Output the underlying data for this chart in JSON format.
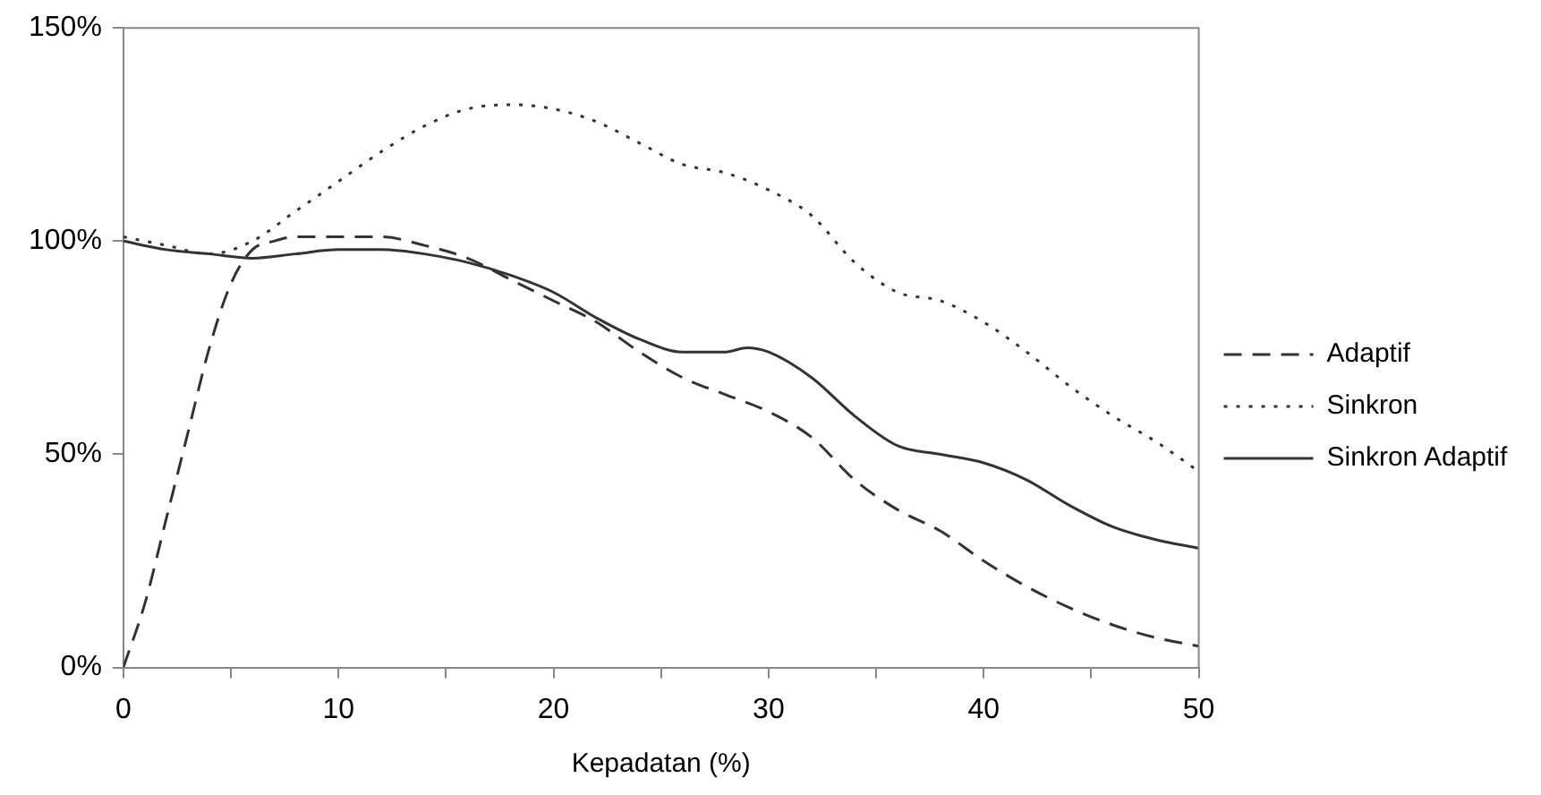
{
  "chart_data": {
    "type": "line",
    "xlabel": "Kepadatan (%)",
    "xlim": [
      0,
      50
    ],
    "xticks": [
      0,
      {
        "value": 5,
        "label": null
      },
      10,
      {
        "value": 15,
        "label": null
      },
      20,
      {
        "value": 25,
        "label": null
      },
      30,
      {
        "value": 35,
        "label": null
      },
      40,
      {
        "value": 45,
        "label": null
      },
      50
    ],
    "ylim": [
      0,
      150
    ],
    "yticks": [
      {
        "value": 0,
        "label": "0%"
      },
      {
        "value": 50,
        "label": "50%"
      },
      {
        "value": 100,
        "label": "100%"
      },
      {
        "value": 150,
        "label": "150%"
      }
    ],
    "grid": false,
    "legend": "right",
    "marker": "none",
    "series": [
      {
        "name": "Adaptif",
        "color": "#333333",
        "line_style": "dashed",
        "x": [
          0,
          1,
          2,
          3,
          4,
          5,
          6,
          7,
          8,
          10,
          12,
          14,
          16,
          18,
          20,
          22,
          24,
          26,
          28,
          30,
          32,
          34,
          36,
          38,
          40,
          42,
          44,
          46,
          48,
          50
        ],
        "values": [
          0,
          15,
          35,
          55,
          75,
          90,
          98,
          100,
          101,
          101,
          101,
          99,
          96,
          91,
          86,
          81,
          74,
          68,
          64,
          60,
          54,
          44,
          37,
          32,
          25,
          19,
          14,
          10,
          7,
          5
        ]
      },
      {
        "name": "Sinkron",
        "color": "#333333",
        "line_style": "dotted",
        "x": [
          0,
          2,
          4,
          6,
          8,
          10,
          12,
          14,
          16,
          18,
          20,
          22,
          24,
          26,
          28,
          30,
          32,
          34,
          36,
          38,
          40,
          42,
          44,
          46,
          48,
          50
        ],
        "values": [
          101,
          99,
          97,
          100,
          107,
          114,
          121,
          127,
          131,
          132,
          131,
          128,
          123,
          118,
          116,
          112,
          106,
          95,
          88,
          86,
          81,
          74,
          66,
          59,
          53,
          46
        ]
      },
      {
        "name": "Sinkron Adaptif",
        "color": "#333333",
        "line_style": "solid",
        "x": [
          0,
          2,
          4,
          6,
          8,
          10,
          12,
          14,
          16,
          18,
          20,
          22,
          24,
          26,
          28,
          29,
          30,
          32,
          34,
          36,
          38,
          40,
          42,
          44,
          46,
          48,
          50
        ],
        "values": [
          100,
          98,
          97,
          96,
          97,
          98,
          98,
          97,
          95,
          92,
          88,
          82,
          77,
          74,
          74,
          75,
          74,
          68,
          59,
          52,
          50,
          48,
          44,
          38,
          33,
          30,
          28
        ]
      }
    ]
  }
}
